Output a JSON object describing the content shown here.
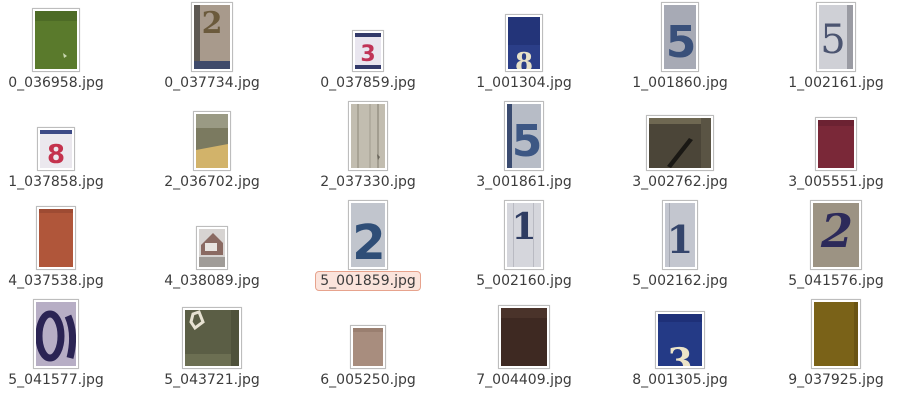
{
  "files": [
    {
      "name": "0_036958.jpg",
      "icon": "image-file-icon"
    },
    {
      "name": "0_037734.jpg",
      "icon": "image-file-icon"
    },
    {
      "name": "0_037859.jpg",
      "icon": "image-file-icon"
    },
    {
      "name": "1_001304.jpg",
      "icon": "image-file-icon"
    },
    {
      "name": "1_001860.jpg",
      "icon": "image-file-icon"
    },
    {
      "name": "1_002161.jpg",
      "icon": "image-file-icon"
    },
    {
      "name": "1_037858.jpg",
      "icon": "image-file-icon"
    },
    {
      "name": "2_036702.jpg",
      "icon": "image-file-icon"
    },
    {
      "name": "2_037330.jpg",
      "icon": "image-file-icon"
    },
    {
      "name": "3_001861.jpg",
      "icon": "image-file-icon"
    },
    {
      "name": "3_002762.jpg",
      "icon": "image-file-icon"
    },
    {
      "name": "3_005551.jpg",
      "icon": "image-file-icon"
    },
    {
      "name": "4_037538.jpg",
      "icon": "image-file-icon"
    },
    {
      "name": "4_038089.jpg",
      "icon": "image-file-icon"
    },
    {
      "name": "5_001859.jpg",
      "icon": "image-file-icon",
      "selected": true
    },
    {
      "name": "5_002160.jpg",
      "icon": "image-file-icon"
    },
    {
      "name": "5_002162.jpg",
      "icon": "image-file-icon"
    },
    {
      "name": "5_041576.jpg",
      "icon": "image-file-icon"
    },
    {
      "name": "5_041577.jpg",
      "icon": "image-file-icon"
    },
    {
      "name": "5_043721.jpg",
      "icon": "image-file-icon"
    },
    {
      "name": "6_005250.jpg",
      "icon": "image-file-icon"
    },
    {
      "name": "7_004409.jpg",
      "icon": "image-file-icon"
    },
    {
      "name": "8_001305.jpg",
      "icon": "image-file-icon"
    },
    {
      "name": "9_037925.jpg",
      "icon": "image-file-icon"
    }
  ],
  "colors": {
    "selection_bg": "#fbe4dc",
    "selection_border": "#e7a38d",
    "label_text": "#3c3c3c"
  }
}
